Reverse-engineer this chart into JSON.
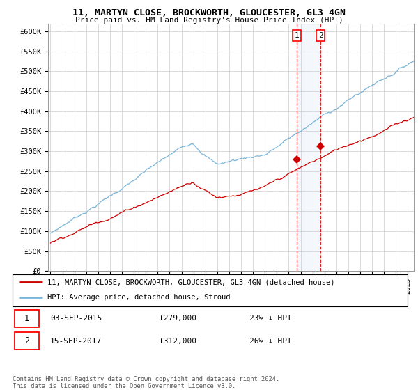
{
  "title": "11, MARTYN CLOSE, BROCKWORTH, GLOUCESTER, GL3 4GN",
  "subtitle": "Price paid vs. HM Land Registry's House Price Index (HPI)",
  "ylabel_ticks": [
    "£0",
    "£50K",
    "£100K",
    "£150K",
    "£200K",
    "£250K",
    "£300K",
    "£350K",
    "£400K",
    "£450K",
    "£500K",
    "£550K",
    "£600K"
  ],
  "ylim": [
    0,
    620000
  ],
  "ytick_values": [
    0,
    50000,
    100000,
    150000,
    200000,
    250000,
    300000,
    350000,
    400000,
    450000,
    500000,
    550000,
    600000
  ],
  "hpi_color": "#7ab4d8",
  "price_color": "#cc0000",
  "sale1_date": "03-SEP-2015",
  "sale1_price": "£279,000",
  "sale1_note": "23% ↓ HPI",
  "sale2_date": "15-SEP-2017",
  "sale2_price": "£312,000",
  "sale2_note": "26% ↓ HPI",
  "legend_line1": "11, MARTYN CLOSE, BROCKWORTH, GLOUCESTER, GL3 4GN (detached house)",
  "legend_line2": "HPI: Average price, detached house, Stroud",
  "footnote": "Contains HM Land Registry data © Crown copyright and database right 2024.\nThis data is licensed under the Open Government Licence v3.0.",
  "xstart_year": 1995,
  "xend_year": 2025
}
